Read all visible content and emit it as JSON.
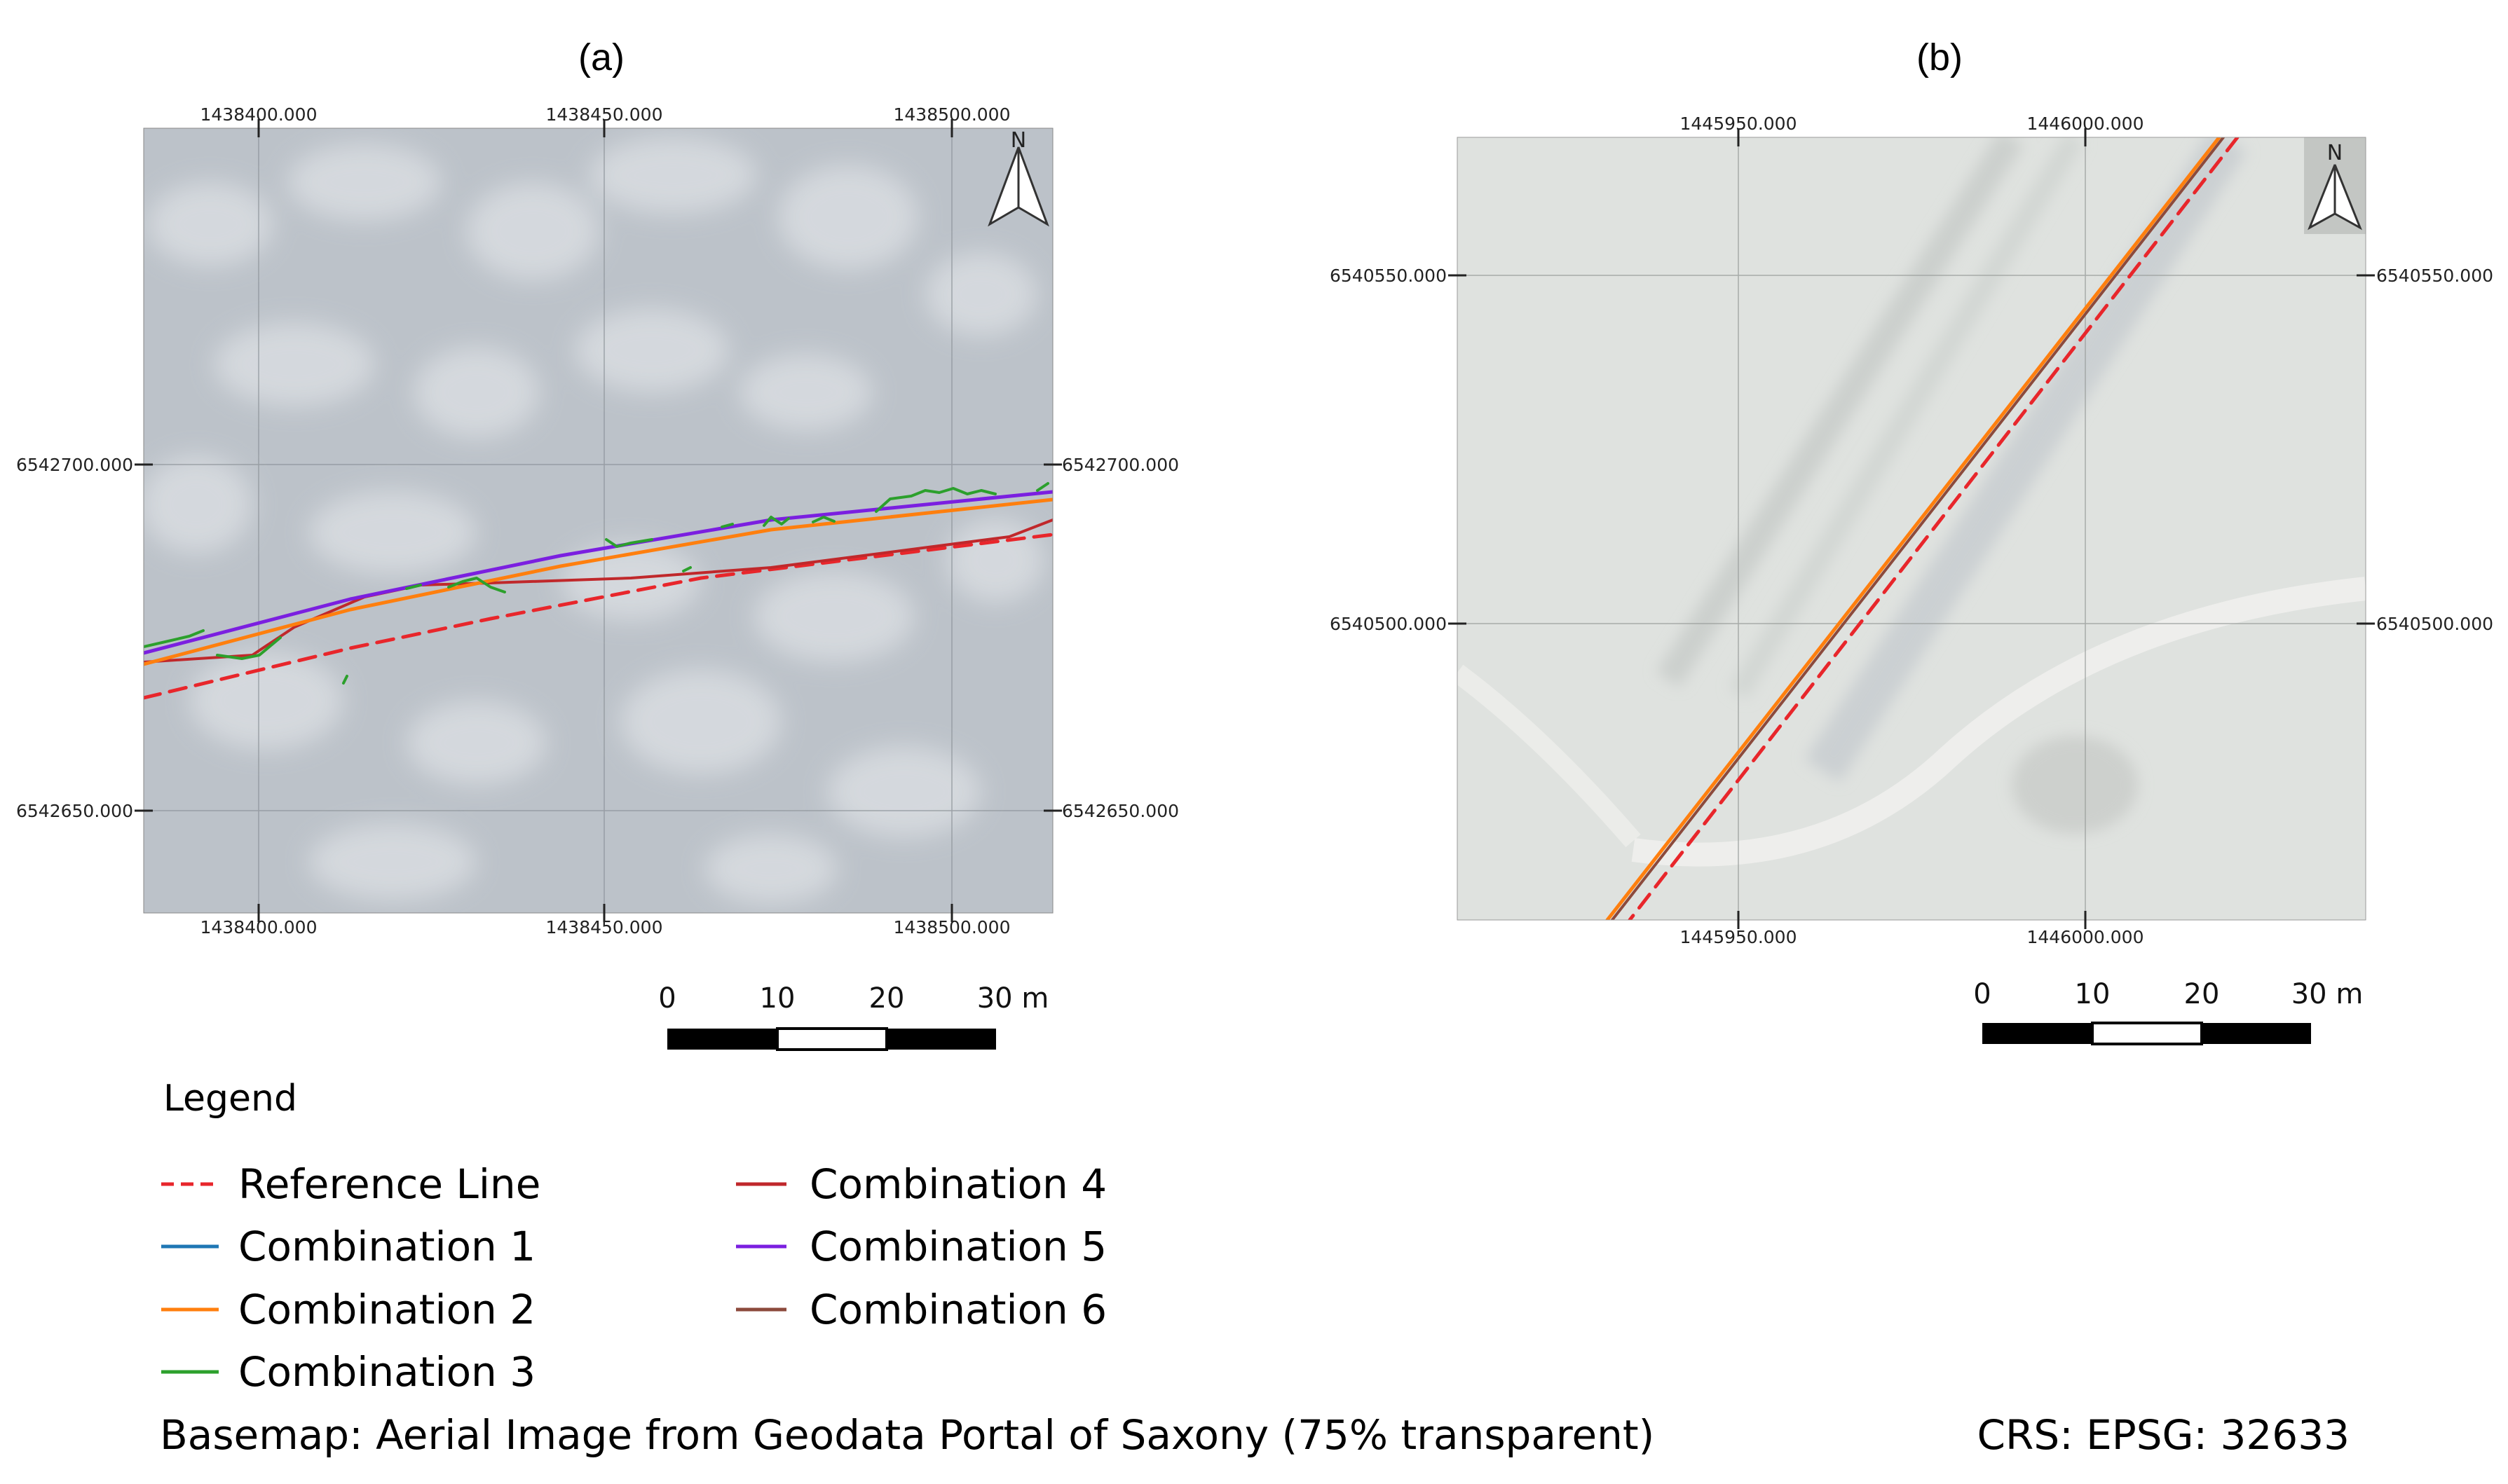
{
  "panel_a": {
    "title": "(a)",
    "x_ticks": [
      "1438400.000",
      "1438450.000",
      "1438500.000"
    ],
    "y_ticks": [
      "6542700.000",
      "6542650.000"
    ],
    "north_label": "N",
    "scale_labels": [
      "0",
      "10",
      "20",
      "30 m"
    ]
  },
  "panel_b": {
    "title": "(b)",
    "x_ticks": [
      "1445950.000",
      "1446000.000"
    ],
    "y_ticks": [
      "6540550.000",
      "6540500.000"
    ],
    "north_label": "N",
    "scale_labels": [
      "0",
      "10",
      "20",
      "30 m"
    ]
  },
  "legend": {
    "title": "Legend",
    "items": [
      {
        "label": "Reference Line",
        "color": "#e8262b",
        "style": "dashed"
      },
      {
        "label": "Combination 1",
        "color": "#1f77b4",
        "style": "solid"
      },
      {
        "label": "Combination 2",
        "color": "#ff7f0e",
        "style": "solid"
      },
      {
        "label": "Combination 3",
        "color": "#2ca02c",
        "style": "solid"
      },
      {
        "label": "Combination 4",
        "color": "#c0282b",
        "style": "solid"
      },
      {
        "label": "Combination 5",
        "color": "#7b1fe0",
        "style": "solid"
      },
      {
        "label": "Combination 6",
        "color": "#8c4a3c",
        "style": "solid"
      }
    ]
  },
  "basemap_note": "Basemap: Aerial Image from Geodata Portal of Saxony (75% transparent)",
  "crs_note": "CRS: EPSG: 32633"
}
